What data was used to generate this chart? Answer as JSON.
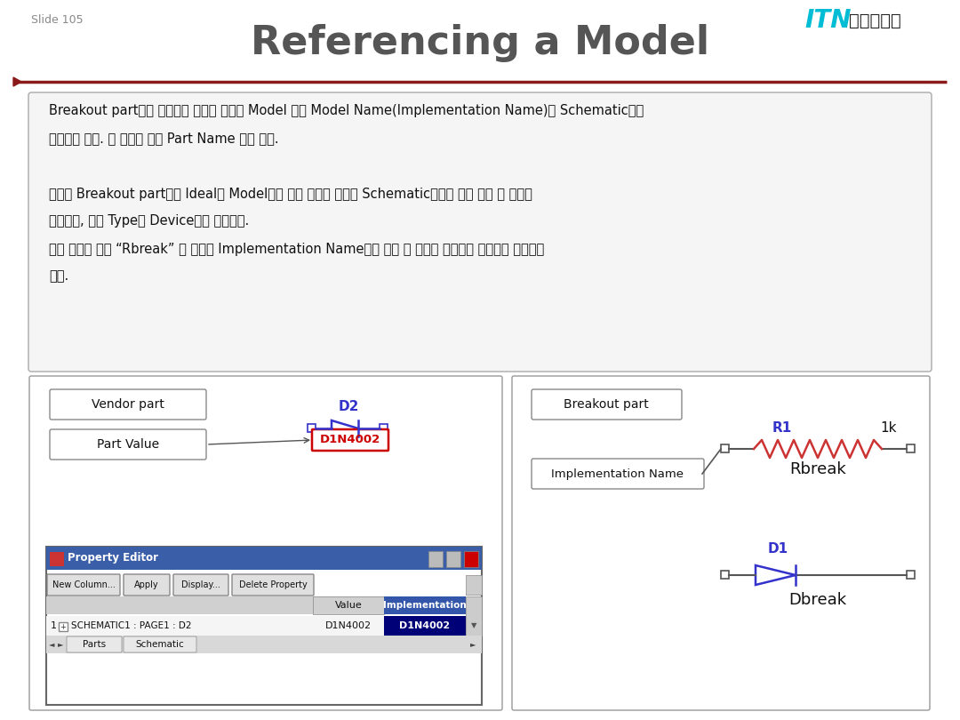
{
  "title": "Referencing a Model",
  "title_color": "#555555",
  "title_fontsize": 32,
  "bg_color": "#ffffff",
  "line_color": "#8B1A1A",
  "slide_num": "Slide 105",
  "body_lines": [
    "Breakout part들을 제외하고 반도체 벤더의 Model 들은 Model Name(Implementation Name)은 Schematic상에",
    "나타나지 않음. 부 주의로 인한 Part Name 변경 금지.",
    "",
    "때문에 Breakout part들은 Ideal한 Model로서 다른 부품의 이름을 Schematic상에서 바로 수정 후 사용이",
    "가능하며, 모든 Type의 Device들을 제공한다.",
    "아래 그림과 같이 “Rbreak” 란 이름은 Implementation Name이며 수정 시 이름에 해당하는 데이터가 필요하게",
    "된다."
  ]
}
